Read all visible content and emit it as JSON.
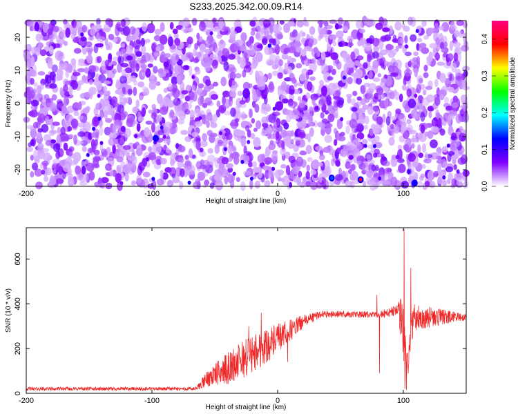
{
  "figure": {
    "title": "S233.2025.342.00.09.R14"
  },
  "chart_data": [
    {
      "type": "heatmap",
      "xlabel": "Height of straight line (km)",
      "ylabel": "Frequency (Hz)",
      "xlim": [
        -200,
        150
      ],
      "ylim": [
        -25,
        25
      ],
      "xticks": [
        -200,
        -100,
        0,
        100
      ],
      "yticks": [
        -20,
        -10,
        0,
        10,
        20
      ],
      "colorbar": {
        "label": "Normalized spectral amplitude",
        "range": [
          0.0,
          0.45
        ],
        "ticks": [
          0.0,
          0.1,
          0.2,
          0.3,
          0.4
        ],
        "tick_labels": [
          "0.0",
          "0.1",
          "0.2",
          "0.3",
          "0.4"
        ],
        "colors": [
          "#ffffff",
          "#8000ff",
          "#0000ff",
          "#00ffff",
          "#00ff00",
          "#ffff00",
          "#ff0000",
          "#ff0080"
        ]
      },
      "description_free_peaks": [
        {
          "x": 66,
          "y": -23,
          "value": 0.4
        },
        {
          "x": 43,
          "y": -22.5,
          "value": 0.15
        },
        {
          "x": 109,
          "y": -24,
          "value": 0.12
        },
        {
          "x": -97,
          "y": -10.5,
          "value": 0.12
        }
      ]
    },
    {
      "type": "line",
      "xlabel": "Height of straight line (km)",
      "ylabel": "SNR (10 * v/v)",
      "xlim": [
        -200,
        150
      ],
      "ylim": [
        0,
        740
      ],
      "xticks": [
        -200,
        -100,
        0,
        100
      ],
      "yticks": [
        0,
        200,
        400,
        600
      ],
      "color": "#ee2a2a",
      "profile_points": [
        {
          "x": -200,
          "mean": 20,
          "noise": 8
        },
        {
          "x": -65,
          "mean": 20,
          "noise": 8
        },
        {
          "x": -55,
          "mean": 70,
          "noise": 40
        },
        {
          "x": -40,
          "mean": 110,
          "noise": 70
        },
        {
          "x": -25,
          "mean": 160,
          "noise": 90
        },
        {
          "x": -10,
          "mean": 210,
          "noise": 80
        },
        {
          "x": 5,
          "mean": 260,
          "noise": 60
        },
        {
          "x": 20,
          "mean": 320,
          "noise": 30
        },
        {
          "x": 35,
          "mean": 355,
          "noise": 15
        },
        {
          "x": 80,
          "mean": 350,
          "noise": 15
        },
        {
          "x": 95,
          "mean": 370,
          "noise": 30
        },
        {
          "x": 100,
          "mean": 300,
          "noise": 150
        },
        {
          "x": 103,
          "mean": 120,
          "noise": 80
        },
        {
          "x": 108,
          "mean": 340,
          "noise": 60
        },
        {
          "x": 150,
          "mean": 340,
          "noise": 15
        }
      ],
      "spikes": [
        {
          "x": 100.5,
          "y": 735
        },
        {
          "x": 101.2,
          "y": 20
        },
        {
          "x": 102.5,
          "y": 15
        },
        {
          "x": 106,
          "y": 560
        },
        {
          "x": 79,
          "y": 440
        },
        {
          "x": 81,
          "y": 90
        },
        {
          "x": -23,
          "y": 300
        },
        {
          "x": -13,
          "y": 360
        },
        {
          "x": 8,
          "y": 140
        }
      ]
    }
  ]
}
